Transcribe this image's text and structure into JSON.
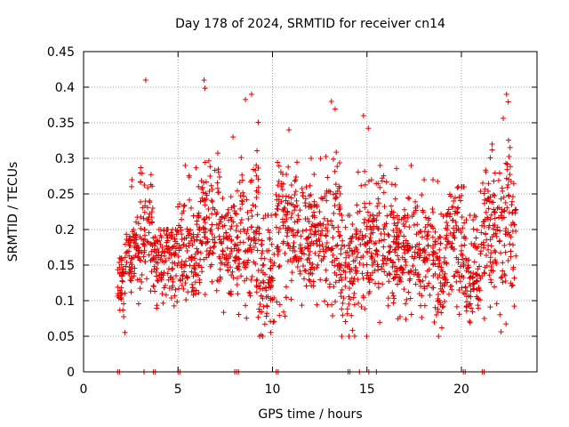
{
  "chart_data": {
    "type": "scatter",
    "title": "Day 178 of 2024, SRMTID for receiver cn14",
    "xlabel": "GPS time / hours",
    "ylabel": "SRMTID / TECUs",
    "xlim": [
      0,
      24
    ],
    "ylim": [
      0,
      0.45
    ],
    "x_ticks": [
      0,
      5,
      10,
      15,
      20
    ],
    "x_tick_labels": [
      "0",
      "5",
      "10",
      "15",
      "20"
    ],
    "y_ticks": [
      0,
      0.05,
      0.1,
      0.15,
      0.2,
      0.25,
      0.3,
      0.35,
      0.4,
      0.45
    ],
    "y_tick_labels": [
      "0",
      "0.05",
      "0.1",
      "0.15",
      "0.2",
      "0.25",
      "0.3",
      "0.35",
      "0.4",
      "0.45"
    ],
    "grid": true,
    "marker": "+",
    "series_color": "#e00000",
    "background_color": "#ffffff",
    "grid_color": "#a0a0a0",
    "data_extent_hours": [
      1.8,
      22.9
    ],
    "activity_profile": [
      {
        "start": 1.8,
        "end": 2.2,
        "center": 0.125,
        "spread": 0.025,
        "peak": 0.16
      },
      {
        "start": 2.2,
        "end": 3.0,
        "center": 0.16,
        "spread": 0.025,
        "peak": 0.27
      },
      {
        "start": 3.0,
        "end": 3.7,
        "center": 0.2,
        "spread": 0.05,
        "peak": 0.41
      },
      {
        "start": 3.7,
        "end": 4.9,
        "center": 0.155,
        "spread": 0.03,
        "peak": 0.2
      },
      {
        "start": 4.9,
        "end": 6.0,
        "center": 0.17,
        "spread": 0.04,
        "peak": 0.29
      },
      {
        "start": 6.0,
        "end": 7.2,
        "center": 0.2,
        "spread": 0.05,
        "peak": 0.41
      },
      {
        "start": 7.2,
        "end": 8.3,
        "center": 0.17,
        "spread": 0.035,
        "peak": 0.33
      },
      {
        "start": 8.3,
        "end": 9.3,
        "center": 0.19,
        "spread": 0.06,
        "peak": 0.39
      },
      {
        "start": 9.3,
        "end": 10.1,
        "center": 0.12,
        "spread": 0.04,
        "peak": 0.22
      },
      {
        "start": 10.1,
        "end": 11.3,
        "center": 0.2,
        "spread": 0.05,
        "peak": 0.34
      },
      {
        "start": 11.3,
        "end": 12.5,
        "center": 0.19,
        "spread": 0.04,
        "peak": 0.3
      },
      {
        "start": 12.5,
        "end": 13.6,
        "center": 0.2,
        "spread": 0.05,
        "peak": 0.38
      },
      {
        "start": 13.6,
        "end": 14.4,
        "center": 0.14,
        "spread": 0.035,
        "peak": 0.22
      },
      {
        "start": 14.4,
        "end": 15.2,
        "center": 0.17,
        "spread": 0.05,
        "peak": 0.36
      },
      {
        "start": 15.2,
        "end": 16.6,
        "center": 0.18,
        "spread": 0.04,
        "peak": 0.29
      },
      {
        "start": 16.6,
        "end": 17.8,
        "center": 0.17,
        "spread": 0.04,
        "peak": 0.29
      },
      {
        "start": 17.8,
        "end": 19.2,
        "center": 0.155,
        "spread": 0.04,
        "peak": 0.27
      },
      {
        "start": 19.2,
        "end": 20.2,
        "center": 0.18,
        "spread": 0.04,
        "peak": 0.26
      },
      {
        "start": 20.2,
        "end": 21.0,
        "center": 0.13,
        "spread": 0.035,
        "peak": 0.22
      },
      {
        "start": 21.0,
        "end": 22.0,
        "center": 0.2,
        "spread": 0.05,
        "peak": 0.32
      },
      {
        "start": 22.0,
        "end": 22.9,
        "center": 0.2,
        "spread": 0.06,
        "peak": 0.39
      }
    ],
    "zero_markers_hours": [
      1.8,
      1.9,
      3.2,
      3.7,
      3.8,
      5.0,
      5.1,
      8.0,
      8.1,
      8.2,
      10.2,
      10.3,
      14.0,
      14.1,
      14.6,
      15.1,
      15.5,
      20.1,
      20.2,
      21.1,
      21.2
    ]
  }
}
